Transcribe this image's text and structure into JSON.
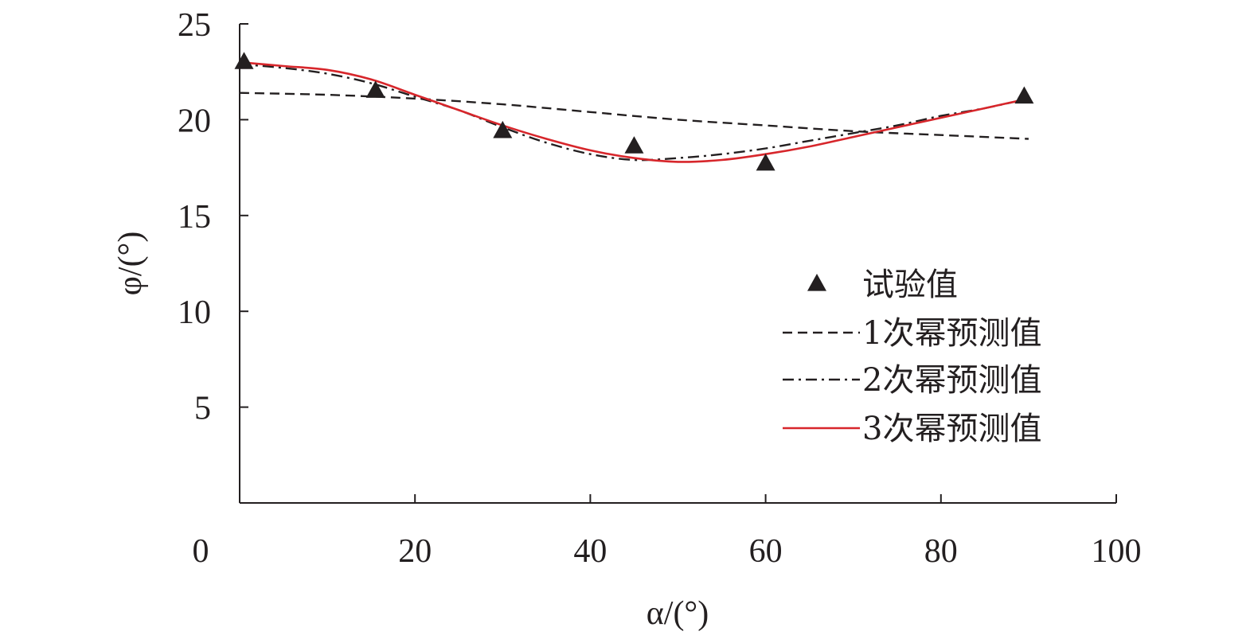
{
  "chart_data": {
    "type": "line",
    "title": "",
    "xlabel": "α/(°)",
    "ylabel": "φ/(°)",
    "xlim": [
      0,
      100
    ],
    "ylim": [
      0,
      25
    ],
    "x_ticks": [
      "0",
      "20",
      "40",
      "60",
      "80",
      "100"
    ],
    "y_ticks": [
      "5",
      "10",
      "15",
      "20",
      "25"
    ],
    "grid": false,
    "legend_position": "right",
    "series": [
      {
        "name": "试验值",
        "kind": "scatter",
        "marker": "triangle",
        "color": "#231f20",
        "x": [
          0.5,
          15.5,
          30,
          45,
          60,
          89.5
        ],
        "y": [
          23.0,
          21.5,
          19.4,
          18.6,
          17.7,
          21.2
        ]
      },
      {
        "name": "1次幂预测值",
        "kind": "line",
        "dash": "dashed",
        "color": "#231f20",
        "x": [
          0,
          10,
          20,
          30,
          40,
          50,
          60,
          70,
          80,
          90
        ],
        "y": [
          21.4,
          21.3,
          21.1,
          20.8,
          20.4,
          20.0,
          19.7,
          19.4,
          19.2,
          19.0
        ]
      },
      {
        "name": "2次幂预测值",
        "kind": "line",
        "dash": "dashdot",
        "color": "#231f20",
        "x": [
          0,
          5,
          10,
          15,
          20,
          25,
          30,
          35,
          40,
          45,
          50,
          55,
          60,
          65,
          70,
          75,
          80,
          85,
          90
        ],
        "y": [
          22.9,
          22.7,
          22.4,
          21.9,
          21.2,
          20.5,
          19.6,
          18.8,
          18.2,
          17.9,
          18.0,
          18.2,
          18.5,
          18.9,
          19.3,
          19.7,
          20.2,
          20.6,
          21.1
        ]
      },
      {
        "name": "3次幂预测值",
        "kind": "line",
        "dash": "solid",
        "color": "#d7262b",
        "x": [
          0,
          5,
          10,
          15,
          20,
          25,
          30,
          35,
          40,
          45,
          50,
          55,
          60,
          65,
          70,
          75,
          80,
          85,
          90
        ],
        "y": [
          23.0,
          22.8,
          22.6,
          22.1,
          21.3,
          20.5,
          19.7,
          19.0,
          18.4,
          18.0,
          17.8,
          17.9,
          18.2,
          18.6,
          19.1,
          19.6,
          20.1,
          20.6,
          21.1
        ]
      }
    ]
  }
}
